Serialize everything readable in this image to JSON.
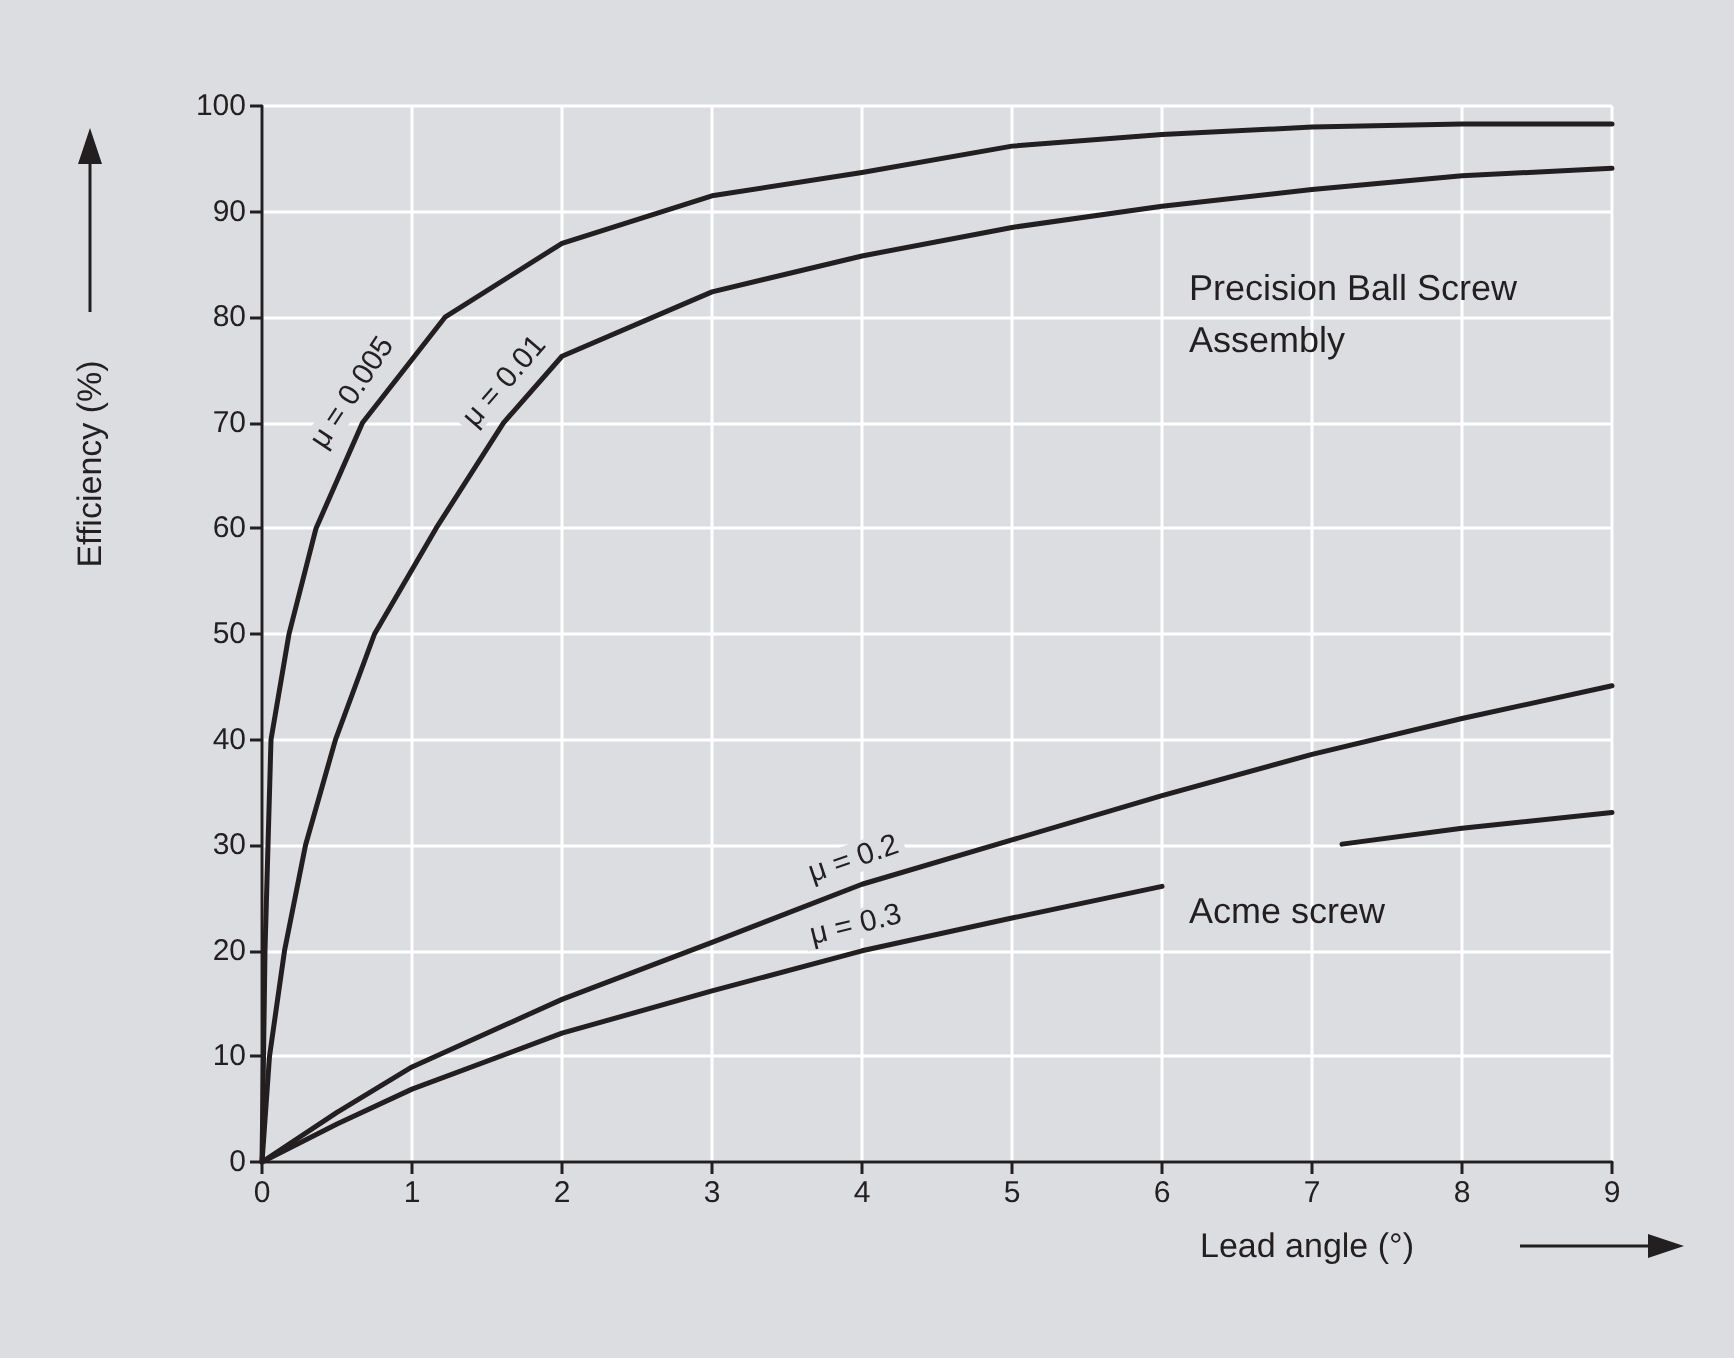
{
  "chart_data": {
    "type": "line",
    "xlabel": "Lead angle (°)",
    "ylabel": "Efficiency (%)",
    "xlim": [
      0,
      9
    ],
    "xticks": [
      0,
      1,
      2,
      3,
      4,
      5,
      6,
      7,
      8,
      9
    ],
    "ylim": [
      0,
      100
    ],
    "yticks": [
      0,
      10,
      20,
      30,
      40,
      50,
      60,
      70,
      80,
      90,
      100
    ],
    "grid": true,
    "legend": false,
    "marker": "none",
    "line_style": "solid",
    "series": [
      {
        "name": "μ = 0.005",
        "color": "#231f20",
        "x": [
          0,
          0.02,
          0.06,
          0.18,
          0.36,
          0.67,
          1,
          1.22,
          2,
          3,
          4,
          5,
          6,
          7,
          8,
          9
        ],
        "values": [
          0,
          20,
          40,
          50,
          60,
          70,
          76,
          80,
          87,
          91.5,
          93.7,
          96.2,
          97.3,
          98,
          98.3,
          98.3
        ]
      },
      {
        "name": "μ = 0.01",
        "color": "#231f20",
        "x": [
          0,
          0.05,
          0.15,
          0.29,
          0.49,
          0.75,
          1.16,
          1.61,
          2,
          3,
          4,
          5,
          6,
          7,
          8,
          9
        ],
        "values": [
          0,
          10,
          20,
          30,
          40,
          50,
          60,
          70,
          76.3,
          82.4,
          85.8,
          88.5,
          90.5,
          92.1,
          93.4,
          94.1
        ]
      },
      {
        "name": "μ = 0.2",
        "color": "#231f20",
        "x": [
          0,
          0.5,
          1,
          2,
          3,
          4,
          5,
          6,
          7,
          8,
          9
        ],
        "values": [
          0,
          4.7,
          9,
          15.4,
          20.8,
          26.3,
          30.5,
          34.7,
          38.6,
          42,
          45.1
        ]
      },
      {
        "name": "μ = 0.3",
        "color": "#231f20",
        "x": [
          0,
          0.5,
          1,
          2,
          3,
          4,
          5,
          6,
          6.6,
          7.2,
          8,
          9
        ],
        "values": [
          0,
          3.6,
          6.9,
          12.2,
          16.2,
          20,
          23.1,
          26.1,
          null,
          30.1,
          31.6,
          33.1
        ]
      }
    ],
    "annotations": [
      "Precision Ball Screw Assembly",
      "Acme screw"
    ]
  }
}
